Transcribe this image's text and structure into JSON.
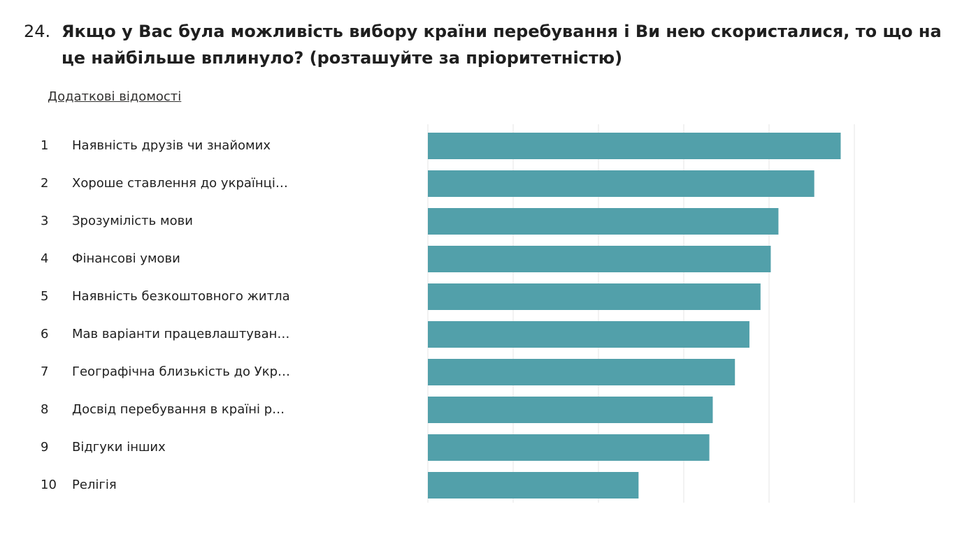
{
  "question": {
    "number": "24.",
    "title": "Якщо у Вас була можливість вибору країни перебування і Ви нею скористалися, то що на це найбільше вплинуло? (розташуйте за пріоритетністю)"
  },
  "details_link": "Додаткові відомості",
  "colors": {
    "bar": "#52a0aa",
    "grid": "#e6e6e6"
  },
  "chart_data": {
    "type": "bar",
    "orientation": "horizontal",
    "ranks": [
      "1",
      "2",
      "3",
      "4",
      "5",
      "6",
      "7",
      "8",
      "9",
      "10"
    ],
    "categories": [
      "Наявність друзів чи знайомих",
      "Хороше ставлення до українці…",
      "Зрозумілість мови",
      "Фінансові умови",
      "Наявність безкоштовного житла",
      "Мав варіанти працевлаштуван…",
      "Географічна близькість до Укр…",
      "Досвід перебування в країні р…",
      "Відгуки інших",
      "Релігія"
    ],
    "values": [
      4.84,
      4.53,
      4.11,
      4.02,
      3.9,
      3.77,
      3.6,
      3.34,
      3.3,
      2.47
    ],
    "xlim": [
      0,
      5
    ],
    "grid": true,
    "axis_tick_labels": false
  }
}
